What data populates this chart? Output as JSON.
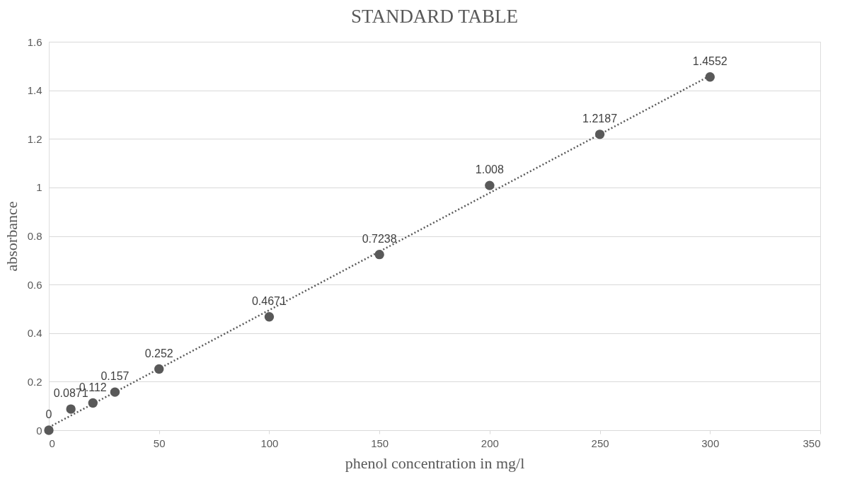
{
  "chart_data": {
    "type": "scatter",
    "title": "STANDARD TABLE",
    "xlabel": "phenol concentration in mg/l",
    "ylabel": "absorbance",
    "x": [
      0,
      10,
      20,
      30,
      50,
      100,
      150,
      200,
      250,
      300
    ],
    "series": [
      {
        "type": "scatter",
        "color": "#595959",
        "marker": "circle",
        "values": [
          0,
          0.0871,
          0.112,
          0.157,
          0.252,
          0.4671,
          0.7238,
          1.008,
          1.2187,
          1.4552
        ],
        "value_labels": [
          "0",
          "0.0871",
          "0.112",
          "0.157",
          "0.252",
          "0.4671",
          "0.7238",
          "1.008",
          "1.2187",
          "1.4552"
        ]
      },
      {
        "type": "line",
        "color": "#595959",
        "marker": "none",
        "line_style": "dotted",
        "x": [
          0,
          300
        ],
        "values": [
          0.012,
          1.46
        ]
      }
    ],
    "xlim": [
      0,
      350
    ],
    "xticks": [
      0,
      50,
      100,
      150,
      200,
      250,
      300,
      350
    ],
    "ylim": [
      0,
      1.6
    ],
    "yticks": [
      0,
      0.2,
      0.4,
      0.6,
      0.8,
      1,
      1.2,
      1.4,
      1.6
    ],
    "grid": "y",
    "legend": false
  }
}
